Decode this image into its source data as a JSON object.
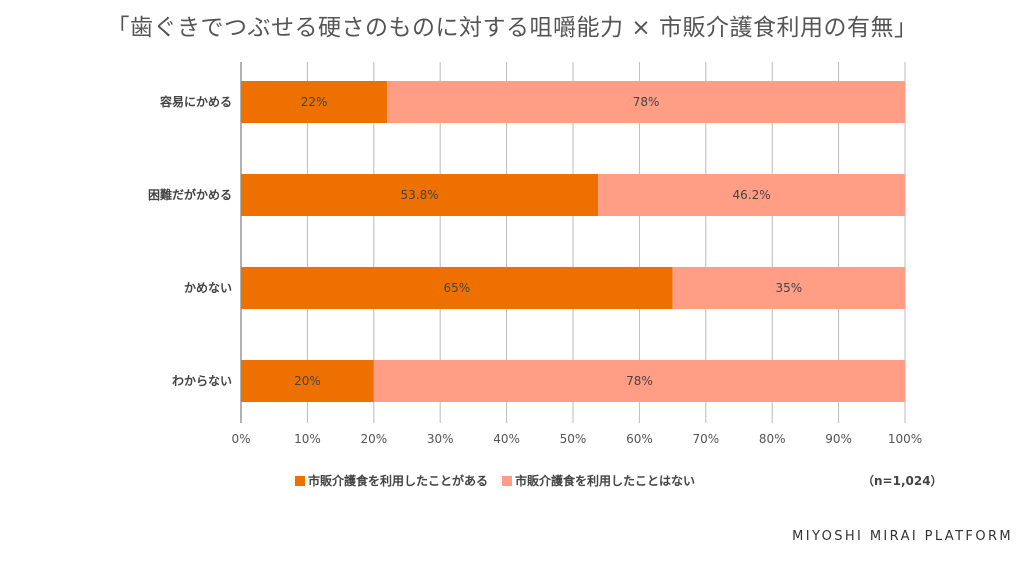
{
  "title": "「歯ぐきでつぶせる硬さのものに対する咀嚼能力 × 市販介護食利用の有無」",
  "note": "（n=1,024）",
  "brand": "MIYOSHI MIRAI PLATFORM",
  "colors": {
    "used": "#EE7100",
    "not_used": "#FF9E85",
    "grid": "#BBBBBB",
    "axis": "#666666"
  },
  "chart_data": {
    "type": "bar",
    "orientation": "horizontal",
    "stacked": true,
    "categories": [
      "容易にかめる",
      "困難だがかめる",
      "かめない",
      "わからない"
    ],
    "series": [
      {
        "name": "市販介護食を利用したことがある",
        "values": [
          22,
          53.8,
          65,
          20
        ],
        "labels": [
          "22%",
          "53.8%",
          "65%",
          "20%"
        ]
      },
      {
        "name": "市販介護食を利用したことはない",
        "values": [
          78,
          46.2,
          35,
          78
        ],
        "labels": [
          "78%",
          "46.2%",
          "35%",
          "78%"
        ]
      }
    ],
    "xlim": [
      0,
      100
    ],
    "xticks": [
      "0%",
      "10%",
      "20%",
      "30%",
      "40%",
      "50%",
      "60%",
      "70%",
      "80%",
      "90%",
      "100%"
    ],
    "grid": true,
    "legend_position": "bottom"
  }
}
